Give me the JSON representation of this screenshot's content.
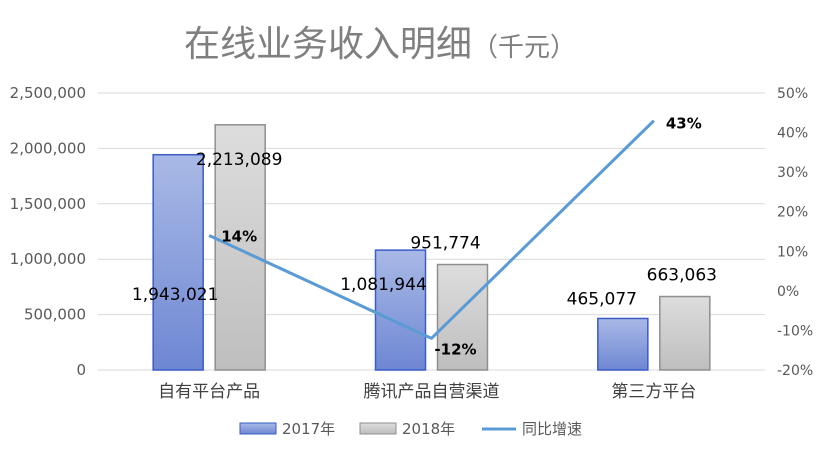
{
  "chart_data": {
    "type": "bar",
    "title": "在线业务收入明细",
    "title_unit": "（千元）",
    "categories": [
      "自有平台产品",
      "腾讯产品自营渠道",
      "第三方平台"
    ],
    "series": [
      {
        "name": "2017年",
        "kind": "bar",
        "axis": "left",
        "values": [
          1943021,
          1081944,
          465077
        ],
        "labels": [
          "1,943,021",
          "1,081,944",
          "465,077"
        ]
      },
      {
        "name": "2018年",
        "kind": "bar",
        "axis": "left",
        "values": [
          2213089,
          951774,
          663063
        ],
        "labels": [
          "2,213,089",
          "951,774",
          "663,063"
        ]
      },
      {
        "name": "同比增速",
        "kind": "line",
        "axis": "right",
        "values": [
          14,
          -12,
          43
        ],
        "labels": [
          "14%",
          "-12%",
          "43%"
        ]
      }
    ],
    "y_left": {
      "min": 0,
      "max": 2500000,
      "ticks": [
        0,
        500000,
        1000000,
        1500000,
        2000000,
        2500000
      ],
      "tick_labels": [
        "0",
        "500,000",
        "1,000,000",
        "1,500,000",
        "2,000,000",
        "2,500,000"
      ]
    },
    "y_right": {
      "min": -20,
      "max": 50,
      "ticks": [
        -20,
        -10,
        0,
        10,
        20,
        30,
        40,
        50
      ],
      "tick_labels": [
        "-20%",
        "-10%",
        "0%",
        "10%",
        "20%",
        "30%",
        "40%",
        "50%"
      ]
    },
    "legend_position": "bottom-center",
    "grid": true,
    "colors": {
      "bar_2017": "#8EA4DC",
      "bar_2017_edge": "#3B5CC7",
      "bar_2018": "#CFCFCF",
      "bar_2018_edge": "#8F8F8F",
      "line": "#5B9BD5",
      "grid": "#D9D9D9",
      "title": "#7F7F7F"
    }
  }
}
